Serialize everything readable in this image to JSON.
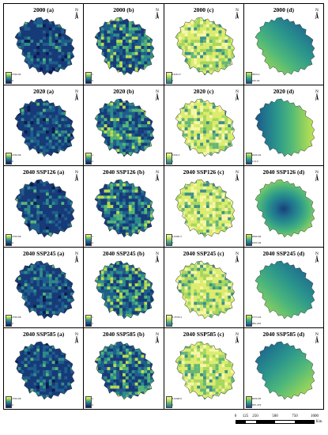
{
  "colors": {
    "ramp_a": [
      "#0d1b4e",
      "#173a78",
      "#1f5e8c",
      "#2f8c8a",
      "#56b776",
      "#b9de50",
      "#f5f08e"
    ],
    "ramp_c": [
      "#2b6b8a",
      "#3d8f8a",
      "#63b57a",
      "#a7d65f",
      "#dcec6e",
      "#f6f6a8"
    ],
    "ramp_d": [
      "#1a3f7a",
      "#1f6f8e",
      "#2b958c",
      "#4eb77a",
      "#92d35c",
      "#d9ea4c"
    ]
  },
  "rows": [
    {
      "year_label": "2000",
      "panels": [
        {
          "id": "a",
          "title": "2000 (a)",
          "legend_max": "2766.84",
          "legend_min": "0",
          "variant": "a"
        },
        {
          "id": "b",
          "title": "2000 (b)",
          "legend_max": "1",
          "legend_min": "0",
          "variant": "b"
        },
        {
          "id": "c",
          "title": "2000 (c)",
          "legend_max": "5428.17",
          "legend_min": "0",
          "variant": "c"
        },
        {
          "id": "d",
          "title": "2000 (d)",
          "legend_max": "3829.2",
          "legend_min": "205.62",
          "variant": "d",
          "gradient": "ne-dark"
        }
      ]
    },
    {
      "year_label": "2020",
      "panels": [
        {
          "id": "a",
          "title": "2020 (a)",
          "legend_max": "2769.86",
          "legend_min": "0",
          "variant": "a"
        },
        {
          "id": "b",
          "title": "2020 (b)",
          "legend_max": "1",
          "legend_min": "0",
          "variant": "b"
        },
        {
          "id": "c",
          "title": "2020 (c)",
          "legend_max": "7256.3",
          "legend_min": "0",
          "variant": "c"
        },
        {
          "id": "d",
          "title": "2020 (d)",
          "legend_max": "4026.26",
          "legend_min": "174.5",
          "variant": "d",
          "gradient": "w-dark"
        }
      ]
    },
    {
      "year_label": "2040 SSP126",
      "panels": [
        {
          "id": "a",
          "title": "2040 SSP126 (a)",
          "legend_max": "2769.86",
          "legend_min": "0",
          "variant": "a"
        },
        {
          "id": "b",
          "title": "2040 SSP126 (b)",
          "legend_max": "1",
          "legend_min": "0",
          "variant": "b"
        },
        {
          "id": "c",
          "title": "2040 SSP126 (c)",
          "legend_max": "5,6900.3",
          "legend_min": "0",
          "variant": "c"
        },
        {
          "id": "d",
          "title": "2040 SSP126 (d)",
          "legend_max": "4896.66",
          "legend_min": "1055.99",
          "variant": "d",
          "gradient": "center-dark"
        }
      ]
    },
    {
      "year_label": "2040 SSP245",
      "panels": [
        {
          "id": "a",
          "title": "2040 SSP245 (a)",
          "legend_max": "2769.86",
          "legend_min": "0",
          "variant": "a"
        },
        {
          "id": "b",
          "title": "2040 SSP245 (b)",
          "legend_max": "1",
          "legend_min": "0",
          "variant": "b"
        },
        {
          "id": "c",
          "title": "2040 SSP245 (c)",
          "legend_max": "5,3578.4",
          "legend_min": "0",
          "variant": "c"
        },
        {
          "id": "d",
          "title": "2040 SSP245 (d)",
          "legend_max": "4773.24",
          "legend_min": "984.245",
          "variant": "d",
          "gradient": "ne-dark"
        }
      ]
    },
    {
      "year_label": "2040 SSP585",
      "panels": [
        {
          "id": "a",
          "title": "2040 SSP585 (a)",
          "legend_max": "2769.86",
          "legend_min": "0",
          "variant": "a"
        },
        {
          "id": "b",
          "title": "2040 SSP585 (b)",
          "legend_max": "1",
          "legend_min": "0",
          "variant": "b"
        },
        {
          "id": "c",
          "title": "2040 SSP585 (c)",
          "legend_max": "5,6996.8",
          "legend_min": "0",
          "variant": "c"
        },
        {
          "id": "d",
          "title": "2040 SSP585 (d)",
          "legend_max": "4836.85",
          "legend_min": "955.479",
          "variant": "d",
          "gradient": "nw-dark"
        }
      ]
    }
  ],
  "north_label": "N",
  "scale": {
    "ticks": [
      "0",
      "125",
      "250",
      "500",
      "750",
      "1000"
    ],
    "tick_values": [
      0,
      125,
      250,
      500,
      750,
      1000
    ],
    "unit": "Km"
  },
  "icons": {
    "north": "north-arrow-icon"
  }
}
